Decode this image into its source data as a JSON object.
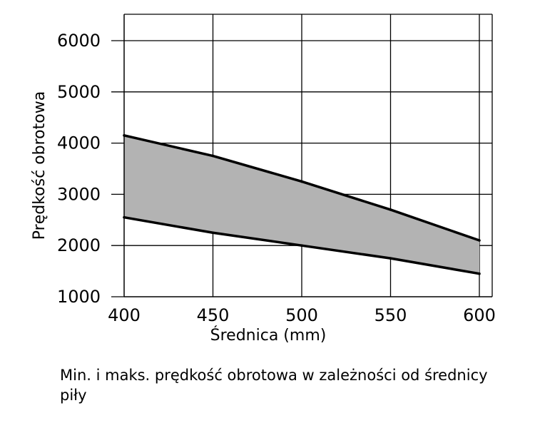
{
  "chart_data": {
    "type": "area",
    "title": "",
    "xlabel": "Średnica (mm)",
    "ylabel": "Prędkość obrotowa",
    "x": [
      400,
      450,
      500,
      550,
      600
    ],
    "xlim": [
      400,
      600
    ],
    "ylim": [
      1000,
      6000
    ],
    "xticks": [
      "400",
      "450",
      "500",
      "550",
      "600"
    ],
    "yticks": [
      "1000",
      "2000",
      "3000",
      "4000",
      "5000",
      "6000"
    ],
    "series": [
      {
        "values": [
          4150,
          3750,
          3250,
          2700,
          2100
        ]
      },
      {
        "values": [
          2550,
          2250,
          2000,
          1750,
          1450
        ]
      }
    ],
    "grid": true,
    "colors": {
      "band_fill": "#b3b3b3",
      "line": "#000000",
      "grid": "#000000"
    }
  },
  "caption": "Min. i maks. prędkość obrotowa w zależności od średnicy piły"
}
